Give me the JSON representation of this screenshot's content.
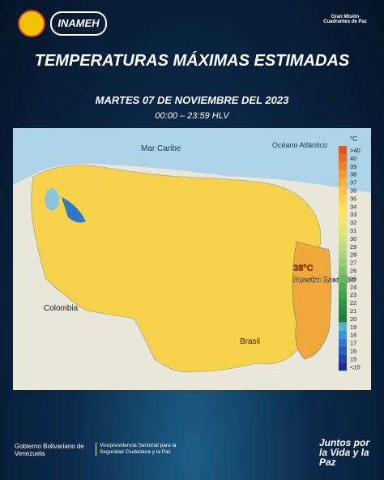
{
  "header": {
    "agency": "INAMEH",
    "campaign": "Gran Misión Cuadrantes de Paz",
    "title": "TEMPERATURAS MÁXIMAS ESTIMADAS",
    "date": "MARTES 07 DE NOVIEMBRE DEL 2023",
    "time": "00:00 – 23:59 HLV"
  },
  "map": {
    "labels": {
      "sea": "Mar Caribe",
      "ocean": "Océano Atlántico",
      "colombia": "Colombia",
      "brasil": "Brasil"
    },
    "annotation": {
      "value": "38°C",
      "region": "Nuestro Esequibo"
    },
    "legend": {
      "unit": "°C",
      "items": [
        {
          "label": ">40",
          "color": "#e3541b"
        },
        {
          "label": "40",
          "color": "#ea6a1f"
        },
        {
          "label": "39",
          "color": "#ef8226"
        },
        {
          "label": "38",
          "color": "#f3982f"
        },
        {
          "label": "37",
          "color": "#f6ad3a"
        },
        {
          "label": "36",
          "color": "#f8c044"
        },
        {
          "label": "35",
          "color": "#f9d04e"
        },
        {
          "label": "34",
          "color": "#fadd58"
        },
        {
          "label": "33",
          "color": "#f8e564"
        },
        {
          "label": "32",
          "color": "#eee96c"
        },
        {
          "label": "31",
          "color": "#e0e773"
        },
        {
          "label": "30",
          "color": "#d0e27a"
        },
        {
          "label": "29",
          "color": "#bfdc7c"
        },
        {
          "label": "28",
          "color": "#acd57a"
        },
        {
          "label": "27",
          "color": "#97cc72"
        },
        {
          "label": "26",
          "color": "#80c267"
        },
        {
          "label": "25",
          "color": "#68b85d"
        },
        {
          "label": "24",
          "color": "#52ad52"
        },
        {
          "label": "23",
          "color": "#3ea249"
        },
        {
          "label": "22",
          "color": "#2f9642"
        },
        {
          "label": "21",
          "color": "#26893d"
        },
        {
          "label": "20",
          "color": "#207b3c"
        },
        {
          "label": "19",
          "color": "#4fb3c8"
        },
        {
          "label": "18",
          "color": "#3a95d6"
        },
        {
          "label": "17",
          "color": "#2f78cc"
        },
        {
          "label": "16",
          "color": "#285dbb"
        },
        {
          "label": "15",
          "color": "#2345a6"
        },
        {
          "label": "<15",
          "color": "#1c2f86"
        }
      ]
    }
  },
  "footer": {
    "government": "Gobierno Bolivariano de Venezuela",
    "vice": "Vicepresidencia Sectorial para la Seguridad Ciudadana y la Paz",
    "slogan": "Juntos por la Vida y la Paz"
  }
}
